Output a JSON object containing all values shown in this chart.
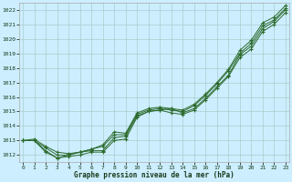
{
  "xlabel": "Graphe pression niveau de la mer (hPa)",
  "xlim": [
    0,
    23
  ],
  "ylim": [
    1011.5,
    1022.5
  ],
  "xticks": [
    0,
    1,
    2,
    3,
    4,
    5,
    6,
    7,
    8,
    9,
    10,
    11,
    12,
    13,
    14,
    15,
    16,
    17,
    18,
    19,
    20,
    21,
    22,
    23
  ],
  "yticks": [
    1012,
    1013,
    1014,
    1015,
    1016,
    1017,
    1018,
    1019,
    1020,
    1021,
    1022
  ],
  "bg_color": "#cceeff",
  "grid_color": "#aacccc",
  "line_color": "#2d6b2d",
  "series": [
    [
      1013.0,
      1013.0,
      1012.3,
      1011.8,
      1012.0,
      1012.2,
      1012.3,
      1012.3,
      1013.2,
      1013.3,
      1014.7,
      1015.0,
      1015.1,
      1015.2,
      1014.9,
      1015.2,
      1015.9,
      1016.7,
      1017.5,
      1018.9,
      1019.5,
      1020.7,
      1021.2,
      1022.0
    ],
    [
      1013.0,
      1013.0,
      1012.5,
      1012.0,
      1012.0,
      1012.2,
      1012.4,
      1012.6,
      1013.4,
      1013.4,
      1014.8,
      1015.1,
      1015.2,
      1015.1,
      1015.0,
      1015.4,
      1016.1,
      1016.9,
      1017.8,
      1019.0,
      1019.7,
      1020.9,
      1021.3,
      1022.1
    ],
    [
      1013.0,
      1013.1,
      1012.6,
      1012.2,
      1012.1,
      1012.2,
      1012.4,
      1012.7,
      1013.6,
      1013.5,
      1014.9,
      1015.2,
      1015.3,
      1015.2,
      1015.1,
      1015.5,
      1016.2,
      1017.0,
      1017.9,
      1019.2,
      1019.9,
      1021.1,
      1021.5,
      1022.3
    ],
    [
      1013.0,
      1013.0,
      1012.2,
      1011.8,
      1011.9,
      1012.0,
      1012.2,
      1012.2,
      1013.0,
      1013.1,
      1014.6,
      1015.0,
      1015.1,
      1014.9,
      1014.8,
      1015.1,
      1015.8,
      1016.6,
      1017.4,
      1018.7,
      1019.3,
      1020.5,
      1021.0,
      1021.8
    ]
  ]
}
